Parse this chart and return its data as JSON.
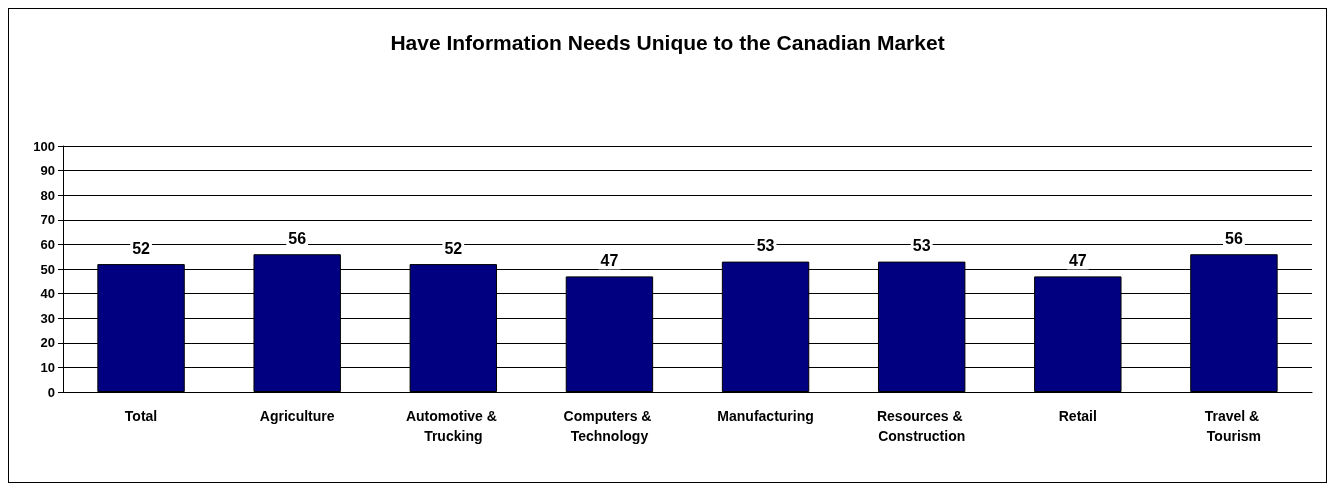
{
  "chart_data": {
    "type": "bar",
    "title": "Have Information Needs Unique to the Canadian Market",
    "categories": [
      "Total",
      "Agriculture",
      "Automotive & Trucking",
      "Computers & Technology",
      "Manufacturing",
      "Resources & Construction",
      "Retail",
      "Travel & Tourism"
    ],
    "values": [
      52,
      56,
      52,
      47,
      53,
      53,
      47,
      56
    ],
    "color": "#000080",
    "ylim": [
      0,
      100
    ],
    "yticks": [
      0,
      10,
      20,
      30,
      40,
      50,
      60,
      70,
      80,
      90,
      100
    ],
    "grid": "y",
    "data_labels": true
  }
}
